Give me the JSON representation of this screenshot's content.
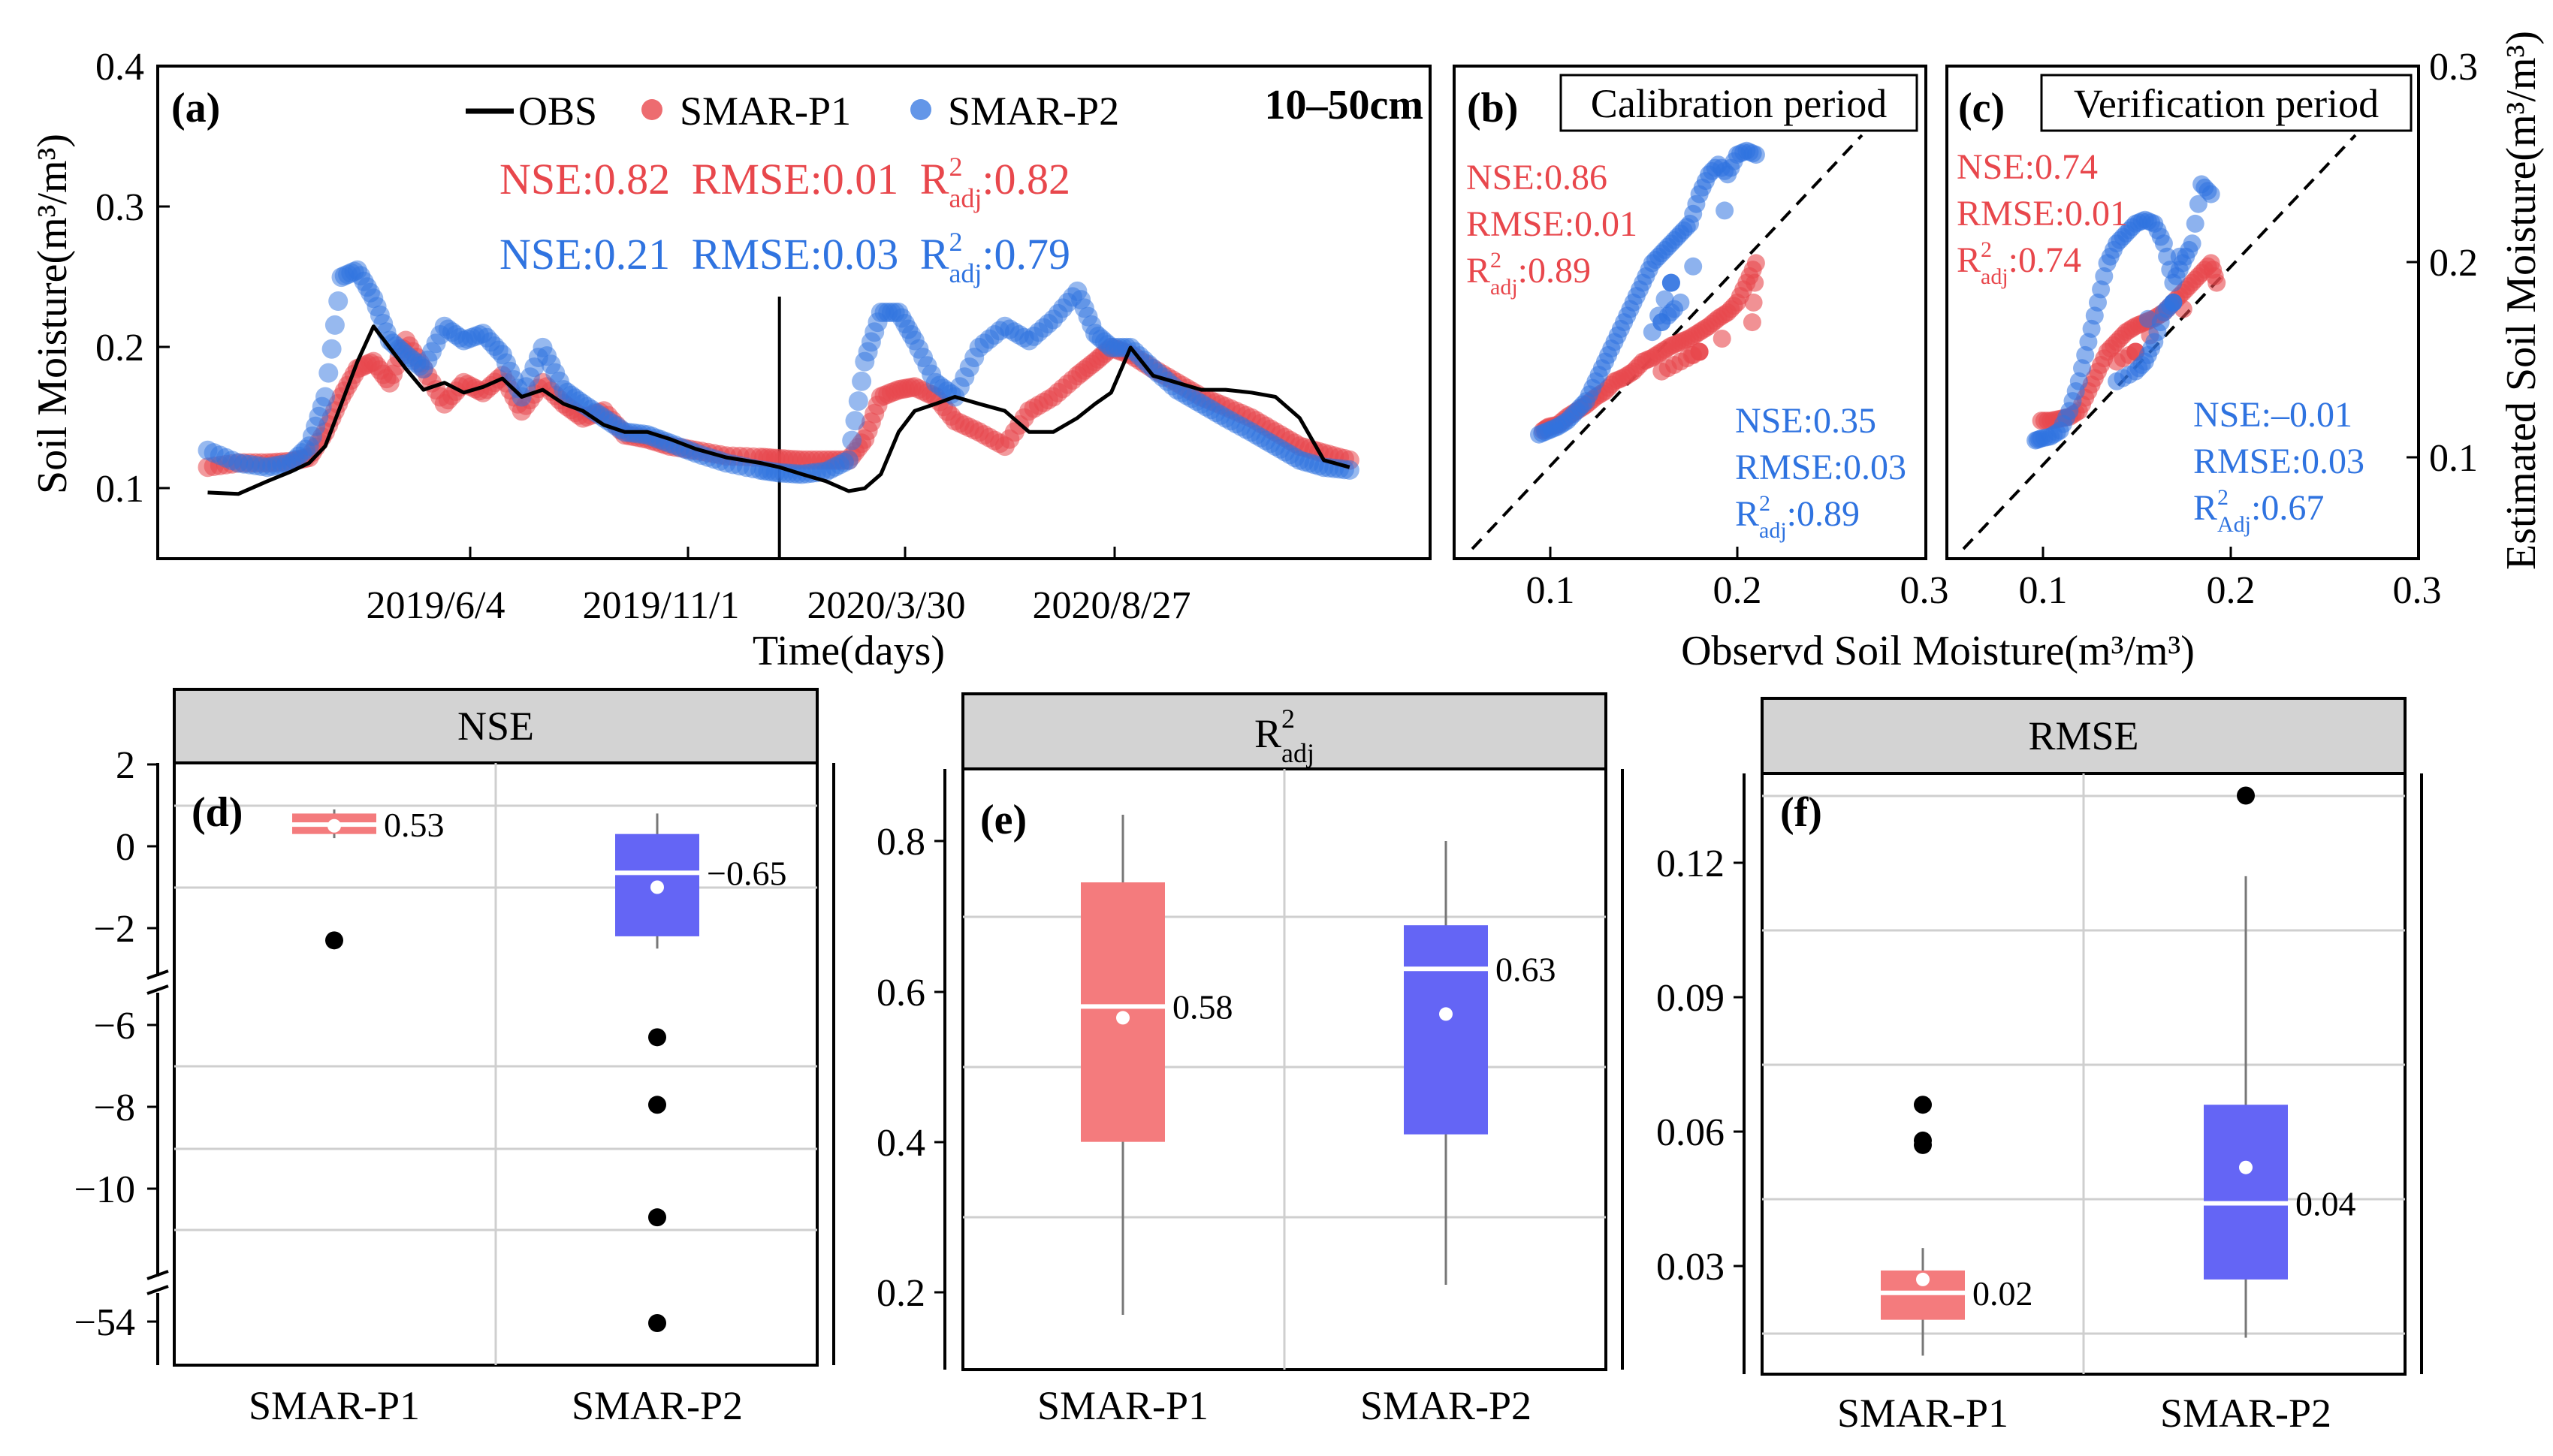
{
  "colors": {
    "obs": "#000000",
    "p1": "#e8474c",
    "p2": "#2f73e0",
    "p1_box": "#f47b7d",
    "p2_box": "#6465f5",
    "strip_fill": "#d3d3d3",
    "grid": "#cfcfcf"
  },
  "chart_data": [
    {
      "panel": "(a)",
      "type": "line",
      "depth_label": "10–50cm",
      "xlabel": "Time(days)",
      "ylabel": "Soil Moisture(m³/m³)",
      "ylim": [
        0.05,
        0.4
      ],
      "yticks": [
        "0.1",
        "0.2",
        "0.3",
        "0.4"
      ],
      "xticks": [
        "2019/6/4",
        "2019/11/1",
        "2020/3/30",
        "2020/8/27"
      ],
      "x_ticks_dates": [
        "2019-06-04",
        "2019-11-01",
        "2020-03-30",
        "2020-08-27"
      ],
      "xlim": [
        "2019-01-01",
        "2021-03-01"
      ],
      "split_date": "2020-01-22",
      "legend": [
        "OBS",
        "SMAR-P1",
        "SMAR-P2"
      ],
      "metrics": [
        {
          "series": "SMAR-P1",
          "nse": "NSE:0.82",
          "rmse": "RMSE:0.01",
          "r2": "R",
          "r2_sup": "2",
          "r2_sub": "adj",
          "r2_val": ":0.82"
        },
        {
          "series": "SMAR-P2",
          "nse": "NSE:0.21",
          "rmse": "RMSE:0.03",
          "r2": "R",
          "r2_sup": "2",
          "r2_sub": "adj",
          "r2_val": ":0.79"
        }
      ],
      "x": [
        "2019-02-01",
        "2019-02-20",
        "2019-03-10",
        "2019-03-25",
        "2019-04-05",
        "2019-04-15",
        "2019-04-25",
        "2019-05-05",
        "2019-05-15",
        "2019-05-25",
        "2019-06-04",
        "2019-06-15",
        "2019-06-28",
        "2019-07-10",
        "2019-07-22",
        "2019-08-03",
        "2019-08-15",
        "2019-08-28",
        "2019-09-10",
        "2019-09-22",
        "2019-10-05",
        "2019-10-18",
        "2019-11-01",
        "2019-11-15",
        "2019-12-01",
        "2019-12-20",
        "2020-01-10",
        "2020-01-22",
        "2020-02-05",
        "2020-02-20",
        "2020-03-05",
        "2020-03-15",
        "2020-03-25",
        "2020-04-05",
        "2020-04-15",
        "2020-04-28",
        "2020-05-10",
        "2020-05-25",
        "2020-06-10",
        "2020-06-25",
        "2020-07-10",
        "2020-07-25",
        "2020-08-05",
        "2020-08-15",
        "2020-08-27",
        "2020-09-10",
        "2020-09-25",
        "2020-10-10",
        "2020-10-25",
        "2020-11-10",
        "2020-11-25",
        "2020-12-10",
        "2020-12-25",
        "2021-01-10"
      ],
      "series": [
        {
          "name": "OBS",
          "values": [
            0.097,
            0.096,
            0.105,
            0.112,
            0.118,
            0.13,
            0.16,
            0.19,
            0.215,
            0.2,
            0.185,
            0.17,
            0.175,
            0.168,
            0.172,
            0.178,
            0.165,
            0.17,
            0.16,
            0.155,
            0.145,
            0.14,
            0.14,
            0.135,
            0.128,
            0.122,
            0.118,
            0.115,
            0.11,
            0.105,
            0.098,
            0.1,
            0.11,
            0.14,
            0.155,
            0.16,
            0.165,
            0.16,
            0.155,
            0.14,
            0.14,
            0.15,
            0.16,
            0.168,
            0.2,
            0.18,
            0.175,
            0.17,
            0.17,
            0.168,
            0.165,
            0.15,
            0.12,
            0.115
          ]
        },
        {
          "name": "SMAR-P1",
          "values": [
            0.115,
            0.118,
            0.118,
            0.119,
            0.122,
            0.14,
            0.165,
            0.185,
            0.19,
            0.175,
            0.205,
            0.185,
            0.16,
            0.175,
            0.168,
            0.18,
            0.155,
            0.175,
            0.16,
            0.15,
            0.155,
            0.138,
            0.135,
            0.13,
            0.127,
            0.123,
            0.122,
            0.121,
            0.12,
            0.12,
            0.12,
            0.135,
            0.165,
            0.17,
            0.172,
            0.165,
            0.148,
            0.14,
            0.13,
            0.155,
            0.165,
            0.18,
            0.19,
            0.2,
            0.195,
            0.185,
            0.175,
            0.165,
            0.158,
            0.15,
            0.14,
            0.13,
            0.125,
            0.12
          ]
        },
        {
          "name": "SMAR-P2",
          "values": [
            0.127,
            0.118,
            0.115,
            0.118,
            0.13,
            0.165,
            0.25,
            0.255,
            0.235,
            0.205,
            0.195,
            0.185,
            0.215,
            0.205,
            0.21,
            0.195,
            0.165,
            0.2,
            0.17,
            0.16,
            0.15,
            0.14,
            0.138,
            0.132,
            0.125,
            0.118,
            0.113,
            0.111,
            0.11,
            0.112,
            0.12,
            0.19,
            0.225,
            0.225,
            0.205,
            0.175,
            0.165,
            0.2,
            0.215,
            0.205,
            0.22,
            0.24,
            0.21,
            0.2,
            0.2,
            0.185,
            0.17,
            0.16,
            0.15,
            0.14,
            0.13,
            0.12,
            0.115,
            0.113
          ]
        }
      ]
    },
    {
      "panel": "(b)",
      "type": "scatter",
      "title": "Calibration period",
      "xlim": [
        0.05,
        0.3
      ],
      "ylim": [
        0.05,
        0.3
      ],
      "xticks": [
        "0.1",
        "0.2",
        "0.3"
      ],
      "metrics": [
        {
          "series": "SMAR-P1",
          "nse": "NSE:0.86",
          "rmse": "RMSE:0.01",
          "r2": "R",
          "r2_sup": "2",
          "r2_sub": "adj",
          "r2_val": ":0.89"
        },
        {
          "series": "SMAR-P2",
          "nse": "NSE:0.35",
          "rmse": "RMSE:0.03",
          "r2": "R",
          "r2_sup": "2",
          "r2_sub": "adj",
          "r2_val": ":0.89"
        }
      ],
      "series": [
        {
          "name": "SMAR-P1",
          "points": [
            [
              0.097,
              0.115
            ],
            [
              0.1,
              0.117
            ],
            [
              0.105,
              0.118
            ],
            [
              0.11,
              0.122
            ],
            [
              0.115,
              0.125
            ],
            [
              0.12,
              0.128
            ],
            [
              0.125,
              0.132
            ],
            [
              0.13,
              0.135
            ],
            [
              0.135,
              0.14
            ],
            [
              0.14,
              0.142
            ],
            [
              0.145,
              0.145
            ],
            [
              0.15,
              0.15
            ],
            [
              0.155,
              0.152
            ],
            [
              0.16,
              0.155
            ],
            [
              0.165,
              0.158
            ],
            [
              0.17,
              0.16
            ],
            [
              0.175,
              0.162
            ],
            [
              0.18,
              0.165
            ],
            [
              0.185,
              0.168
            ],
            [
              0.19,
              0.172
            ],
            [
              0.195,
              0.175
            ],
            [
              0.2,
              0.18
            ],
            [
              0.205,
              0.19
            ],
            [
              0.21,
              0.2
            ],
            [
              0.208,
              0.17
            ],
            [
              0.16,
              0.145
            ],
            [
              0.17,
              0.15
            ],
            [
              0.18,
              0.155
            ]
          ]
        },
        {
          "name": "SMAR-P2",
          "points": [
            [
              0.095,
              0.113
            ],
            [
              0.1,
              0.115
            ],
            [
              0.105,
              0.117
            ],
            [
              0.11,
              0.12
            ],
            [
              0.115,
              0.125
            ],
            [
              0.12,
              0.13
            ],
            [
              0.125,
              0.14
            ],
            [
              0.13,
              0.15
            ],
            [
              0.135,
              0.16
            ],
            [
              0.14,
              0.17
            ],
            [
              0.145,
              0.18
            ],
            [
              0.15,
              0.19
            ],
            [
              0.155,
              0.2
            ],
            [
              0.16,
              0.205
            ],
            [
              0.165,
              0.21
            ],
            [
              0.17,
              0.215
            ],
            [
              0.175,
              0.22
            ],
            [
              0.18,
              0.235
            ],
            [
              0.185,
              0.245
            ],
            [
              0.19,
              0.25
            ],
            [
              0.195,
              0.245
            ],
            [
              0.2,
              0.255
            ],
            [
              0.205,
              0.257
            ],
            [
              0.21,
              0.255
            ],
            [
              0.16,
              0.17
            ],
            [
              0.17,
              0.18
            ],
            [
              0.155,
              0.165
            ],
            [
              0.165,
              0.19
            ]
          ]
        }
      ]
    },
    {
      "panel": "(c)",
      "type": "scatter",
      "title": "Verification period",
      "xlim": [
        0.05,
        0.3
      ],
      "ylim": [
        0.05,
        0.3
      ],
      "xticks": [
        "0.1",
        "0.2",
        "0.3"
      ],
      "yticks": [
        "0.1",
        "0.2",
        "0.3"
      ],
      "xlabel": "Observd Soil Moisture(m³/m³)",
      "ylabel": "Estimated Soil Moisture(m³/m³)",
      "metrics": [
        {
          "series": "SMAR-P1",
          "nse": "NSE:0.74",
          "rmse": "RMSE:0.01",
          "r2": "R",
          "r2_sup": "2",
          "r2_sub": "adj",
          "r2_val": ":0.74"
        },
        {
          "series": "SMAR-P2",
          "nse": "NSE:–0.01",
          "rmse": "RMSE:0.03",
          "r2": "R",
          "r2_sup": "2",
          "r2_sub": "Adj",
          "r2_val": ":0.67"
        }
      ],
      "series": [
        {
          "name": "SMAR-P1",
          "points": [
            [
              0.1,
              0.12
            ],
            [
              0.105,
              0.12
            ],
            [
              0.11,
              0.121
            ],
            [
              0.115,
              0.122
            ],
            [
              0.12,
              0.125
            ],
            [
              0.125,
              0.135
            ],
            [
              0.13,
              0.145
            ],
            [
              0.135,
              0.155
            ],
            [
              0.14,
              0.16
            ],
            [
              0.145,
              0.165
            ],
            [
              0.15,
              0.168
            ],
            [
              0.155,
              0.17
            ],
            [
              0.16,
              0.172
            ],
            [
              0.165,
              0.175
            ],
            [
              0.17,
              0.18
            ],
            [
              0.175,
              0.185
            ],
            [
              0.18,
              0.19
            ],
            [
              0.185,
              0.195
            ],
            [
              0.19,
              0.2
            ],
            [
              0.193,
              0.19
            ],
            [
              0.14,
              0.15
            ],
            [
              0.15,
              0.155
            ]
          ]
        },
        {
          "name": "SMAR-P2",
          "points": [
            [
              0.097,
              0.11
            ],
            [
              0.1,
              0.111
            ],
            [
              0.105,
              0.112
            ],
            [
              0.11,
              0.115
            ],
            [
              0.115,
              0.125
            ],
            [
              0.12,
              0.14
            ],
            [
              0.125,
              0.16
            ],
            [
              0.13,
              0.18
            ],
            [
              0.135,
              0.2
            ],
            [
              0.14,
              0.21
            ],
            [
              0.145,
              0.215
            ],
            [
              0.15,
              0.22
            ],
            [
              0.155,
              0.222
            ],
            [
              0.16,
              0.22
            ],
            [
              0.165,
              0.21
            ],
            [
              0.17,
              0.19
            ],
            [
              0.175,
              0.2
            ],
            [
              0.18,
              0.21
            ],
            [
              0.185,
              0.24
            ],
            [
              0.19,
              0.235
            ],
            [
              0.14,
              0.14
            ],
            [
              0.15,
              0.145
            ],
            [
              0.155,
              0.15
            ],
            [
              0.16,
              0.16
            ],
            [
              0.165,
              0.175
            ],
            [
              0.17,
              0.18
            ]
          ]
        }
      ]
    },
    {
      "panel": "(d)",
      "type": "box",
      "strip": "NSE",
      "categories": [
        "SMAR-P1",
        "SMAR-P2"
      ],
      "yticks": [
        "2",
        "0",
        "−2",
        "−6",
        "−8",
        "−10",
        "−54"
      ],
      "boxes": [
        {
          "name": "SMAR-P1",
          "q1": 0.3,
          "median": 0.53,
          "q3": 0.8,
          "whisker_low": 0.2,
          "whisker_high": 0.9,
          "mean": 0.5,
          "label": "0.53",
          "outliers": [
            -2.3
          ]
        },
        {
          "name": "SMAR-P2",
          "q1": -2.2,
          "median": -0.65,
          "q3": 0.3,
          "whisker_low": -2.5,
          "whisker_high": 0.8,
          "mean": -1.0,
          "label": "−0.65",
          "outliers": [
            -6.3,
            -7.95,
            -10.7,
            -54
          ]
        }
      ]
    },
    {
      "panel": "(e)",
      "type": "box",
      "strip_main": "R",
      "strip_sup": "2",
      "strip_sub": "adj",
      "categories": [
        "SMAR-P1",
        "SMAR-P2"
      ],
      "ylim": [
        0.15,
        0.9
      ],
      "yticks": [
        "0.2",
        "0.4",
        "0.6",
        "0.8"
      ],
      "boxes": [
        {
          "name": "SMAR-P1",
          "q1": 0.4,
          "median": 0.58,
          "q3": 0.745,
          "whisker_low": 0.17,
          "whisker_high": 0.835,
          "mean": 0.565,
          "label": "0.58",
          "outliers": []
        },
        {
          "name": "SMAR-P2",
          "q1": 0.41,
          "median": 0.63,
          "q3": 0.688,
          "whisker_low": 0.21,
          "whisker_high": 0.8,
          "mean": 0.57,
          "label": "0.63",
          "outliers": []
        }
      ]
    },
    {
      "panel": "(f)",
      "type": "box",
      "strip": "RMSE",
      "categories": [
        "SMAR-P1",
        "SMAR-P2"
      ],
      "ylim": [
        0.005,
        0.142
      ],
      "yticks": [
        "0.03",
        "0.06",
        "0.09",
        "0.12"
      ],
      "boxes": [
        {
          "name": "SMAR-P1",
          "q1": 0.018,
          "median": 0.024,
          "q3": 0.029,
          "whisker_low": 0.01,
          "whisker_high": 0.034,
          "mean": 0.027,
          "label": "0.02",
          "outliers": [
            0.057,
            0.058,
            0.066
          ]
        },
        {
          "name": "SMAR-P2",
          "q1": 0.027,
          "median": 0.044,
          "q3": 0.066,
          "whisker_low": 0.014,
          "whisker_high": 0.117,
          "mean": 0.052,
          "label": "0.04",
          "outliers": [
            0.135
          ]
        }
      ]
    }
  ]
}
